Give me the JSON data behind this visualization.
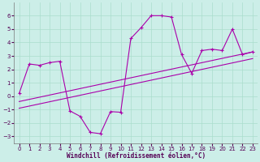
{
  "xlabel": "Windchill (Refroidissement éolien,°C)",
  "bg_color": "#cceee8",
  "grid_color": "#aaddcc",
  "line_color": "#aa00aa",
  "x_data": [
    0,
    1,
    2,
    3,
    4,
    5,
    6,
    7,
    8,
    9,
    10,
    11,
    12,
    13,
    14,
    15,
    16,
    17,
    18,
    19,
    20,
    21,
    22,
    23
  ],
  "scatter_y": [
    0.2,
    2.4,
    2.3,
    2.5,
    2.6,
    -1.1,
    -1.5,
    -2.7,
    -2.8,
    -1.15,
    -1.2,
    4.3,
    5.1,
    6.0,
    6.0,
    5.9,
    3.1,
    1.7,
    3.4,
    3.5,
    3.4,
    5.0,
    3.1,
    3.3
  ],
  "line1_x": [
    0,
    23
  ],
  "line1_y": [
    -0.4,
    3.3
  ],
  "line2_x": [
    0,
    23
  ],
  "line2_y": [
    -0.9,
    2.8
  ],
  "xlim": [
    -0.5,
    23.5
  ],
  "ylim": [
    -3.5,
    7.0
  ],
  "xticks": [
    0,
    1,
    2,
    3,
    4,
    5,
    6,
    7,
    8,
    9,
    10,
    11,
    12,
    13,
    14,
    15,
    16,
    17,
    18,
    19,
    20,
    21,
    22,
    23
  ],
  "yticks": [
    -3,
    -2,
    -1,
    0,
    1,
    2,
    3,
    4,
    5,
    6
  ],
  "tick_fontsize": 5,
  "xlabel_fontsize": 5.5
}
